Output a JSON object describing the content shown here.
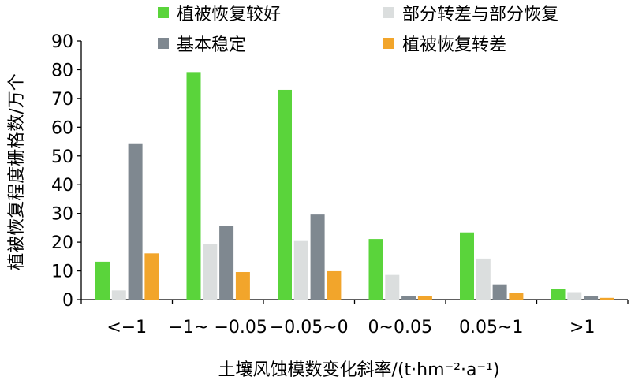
{
  "chart_data": {
    "type": "bar",
    "title": "",
    "xlabel": "土壤风蚀模数变化斜率/(t·hm⁻²·a⁻¹)",
    "ylabel": "植被恢复程度栅格数/万个",
    "ylim": [
      0,
      90
    ],
    "yticks": [
      0,
      10,
      20,
      30,
      40,
      50,
      60,
      70,
      80,
      90
    ],
    "grid": false,
    "legend_position": "top",
    "categories": [
      "<−1",
      "−1~ −0.05",
      "−0.05~0",
      "0~0.05",
      "0.05~1",
      ">1"
    ],
    "series": [
      {
        "name": "植被恢复较好",
        "color": "#5ad43b",
        "values": [
          13.2,
          79.2,
          73.0,
          21.1,
          23.4,
          3.8
        ]
      },
      {
        "name": "部分转差与部分恢复",
        "color": "#dbdede",
        "values": [
          3.2,
          19.3,
          20.4,
          8.6,
          14.3,
          2.6
        ]
      },
      {
        "name": "基本稳定",
        "color": "#7f8890",
        "values": [
          54.4,
          25.6,
          29.6,
          1.3,
          5.3,
          1.1
        ]
      },
      {
        "name": "植被恢复转差",
        "color": "#f2a52b",
        "values": [
          16.1,
          9.6,
          9.9,
          1.3,
          2.2,
          0.6
        ]
      }
    ]
  }
}
